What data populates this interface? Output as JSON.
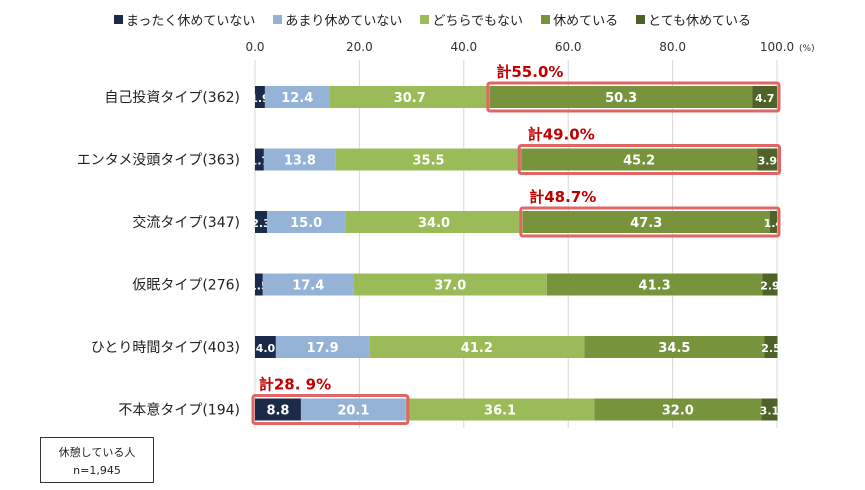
{
  "chart_data": {
    "type": "bar",
    "orientation": "horizontal",
    "stacked": true,
    "xlim": [
      0,
      100
    ],
    "x_ticks": [
      "0.0",
      "20.0",
      "40.0",
      "60.0",
      "80.0",
      "100.0"
    ],
    "x_unit": "(%)",
    "categories": [
      "自己投資タイプ(362)",
      "エンタメ没頭タイプ(363)",
      "交流タイプ(347)",
      "仮眠タイプ(276)",
      "ひとり時間タイプ(403)",
      "不本意タイプ(194)"
    ],
    "series": [
      {
        "name": "まったく休めていない",
        "color": "#1b2a48",
        "values": [
          1.9,
          1.7,
          2.3,
          1.5,
          4.0,
          8.8
        ]
      },
      {
        "name": "あまり休めていない",
        "color": "#95b3d7",
        "values": [
          12.4,
          13.8,
          15.0,
          17.4,
          17.9,
          20.1
        ]
      },
      {
        "name": "どちらでもない",
        "color": "#9bbb59",
        "values": [
          30.7,
          35.5,
          34.0,
          37.0,
          41.2,
          36.1
        ]
      },
      {
        "name": "休めている",
        "color": "#77933c",
        "values": [
          50.3,
          45.2,
          47.3,
          41.3,
          34.5,
          32.0
        ]
      },
      {
        "name": "とても休めている",
        "color": "#4f6228",
        "values": [
          4.7,
          3.9,
          1.4,
          2.9,
          2.5,
          3.1
        ]
      }
    ],
    "annotations": [
      {
        "row": 0,
        "text": "計55.0%",
        "from_series": 3,
        "to_series": 4
      },
      {
        "row": 1,
        "text": "計49.0%",
        "from_series": 3,
        "to_series": 4
      },
      {
        "row": 2,
        "text": "計48.7%",
        "from_series": 3,
        "to_series": 4
      },
      {
        "row": 5,
        "text": "計28. 9%",
        "from_series": 0,
        "to_series": 1
      }
    ],
    "highlight_color": "#e06666",
    "annotation_text_color": "#c00000",
    "grid": true,
    "legend_position": "top"
  },
  "note": {
    "line1": "休憩している人",
    "line2": "n=1,945"
  }
}
